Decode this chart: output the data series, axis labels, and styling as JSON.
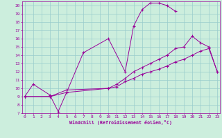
{
  "xlabel": "Windchill (Refroidissement éolien,°C)",
  "bg_color": "#cceedd",
  "line_color": "#990099",
  "grid_color": "#99cccc",
  "curve1_x": [
    0,
    1,
    3,
    4,
    5,
    7,
    10,
    12,
    13,
    14,
    15,
    16,
    17,
    18
  ],
  "curve1_y": [
    9.0,
    10.5,
    9.2,
    7.2,
    9.5,
    14.3,
    16.0,
    12.0,
    17.5,
    19.5,
    20.3,
    20.3,
    20.0,
    19.3
  ],
  "curve2_x": [
    0,
    3,
    5,
    10,
    11,
    12,
    13,
    14,
    15,
    16,
    17,
    18,
    19,
    20,
    21,
    22,
    23
  ],
  "curve2_y": [
    9.0,
    9.0,
    9.5,
    10.0,
    10.5,
    11.2,
    12.0,
    12.5,
    13.0,
    13.5,
    14.0,
    14.8,
    15.0,
    16.3,
    15.5,
    15.0,
    12.0
  ],
  "curve3_x": [
    0,
    3,
    5,
    10,
    11,
    12,
    13,
    14,
    15,
    16,
    17,
    18,
    19,
    20,
    21,
    22,
    23
  ],
  "curve3_y": [
    9.0,
    9.0,
    9.8,
    10.0,
    10.2,
    10.8,
    11.2,
    11.7,
    12.0,
    12.3,
    12.7,
    13.2,
    13.5,
    14.0,
    14.5,
    14.8,
    12.0
  ],
  "ylim": [
    7,
    20.5
  ],
  "xlim": [
    -0.3,
    23.3
  ],
  "yticks": [
    7,
    8,
    9,
    10,
    11,
    12,
    13,
    14,
    15,
    16,
    17,
    18,
    19,
    20
  ],
  "xticks": [
    0,
    1,
    2,
    3,
    4,
    5,
    6,
    7,
    8,
    9,
    10,
    11,
    12,
    13,
    14,
    15,
    16,
    17,
    18,
    19,
    20,
    21,
    22,
    23
  ]
}
